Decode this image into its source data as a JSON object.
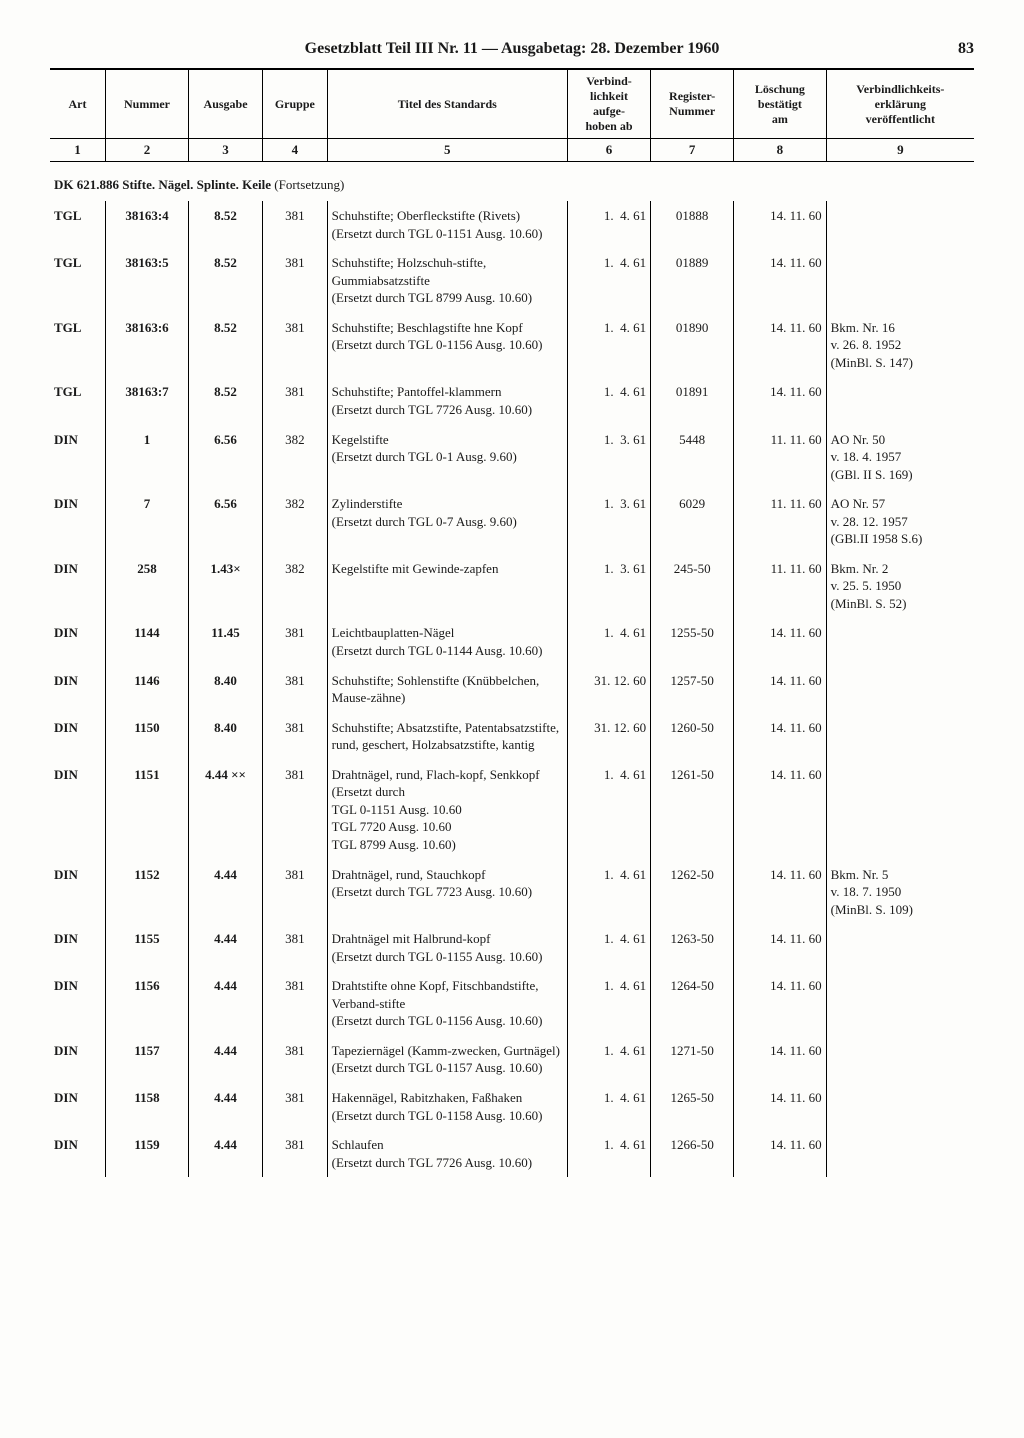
{
  "header": {
    "title": "Gesetzblatt Teil III Nr. 11 — Ausgabetag: 28. Dezember 1960",
    "page_number": "83"
  },
  "columns": {
    "headers": [
      "Art",
      "Nummer",
      "Ausgabe",
      "Gruppe",
      "Titel des Standards",
      "Verbind-\nlichkeit\naufge-\nhoben ab",
      "Register-\nNummer",
      "Löschung\nbestätigt\nam",
      "Verbindlichkeits-\nerklärung\nveröffentlicht"
    ],
    "numbers": [
      "1",
      "2",
      "3",
      "4",
      "5",
      "6",
      "7",
      "8",
      "9"
    ]
  },
  "section": {
    "label": "DK 621.886 Stifte. Nägel. Splinte. Keile",
    "suffix": "(Fortsetzung)"
  },
  "rows": [
    {
      "art": "TGL",
      "num": "38163:4",
      "ausg": "8.52",
      "grp": "381",
      "title": "Schuhstifte; Oberfleckstifte (Rivets)\n(Ersetzt durch TGL 0-1151 Ausg. 10.60)",
      "verb": "1.  4. 61",
      "reg": "01888",
      "loesch": "14. 11. 60",
      "publ": ""
    },
    {
      "art": "TGL",
      "num": "38163:5",
      "ausg": "8.52",
      "grp": "381",
      "title": "Schuhstifte; Holzschuh-stifte, Gummiabsatzstifte\n(Ersetzt durch TGL 8799 Ausg. 10.60)",
      "verb": "1.  4. 61",
      "reg": "01889",
      "loesch": "14. 11. 60",
      "publ": ""
    },
    {
      "art": "TGL",
      "num": "38163:6",
      "ausg": "8.52",
      "grp": "381",
      "title": "Schuhstifte; Beschlagstifte hne Kopf\n(Ersetzt durch TGL 0-1156 Ausg. 10.60)",
      "verb": "1.  4. 61",
      "reg": "01890",
      "loesch": "14. 11. 60",
      "publ": "Bkm. Nr. 16\nv. 26. 8. 1952\n(MinBl. S. 147)"
    },
    {
      "art": "TGL",
      "num": "38163:7",
      "ausg": "8.52",
      "grp": "381",
      "title": "Schuhstifte; Pantoffel-klammern\n(Ersetzt durch TGL 7726 Ausg. 10.60)",
      "verb": "1.  4. 61",
      "reg": "01891",
      "loesch": "14. 11. 60",
      "publ": ""
    },
    {
      "art": "DIN",
      "num": "1",
      "ausg": "6.56",
      "grp": "382",
      "title": "Kegelstifte\n(Ersetzt durch TGL 0-1 Ausg. 9.60)",
      "verb": "1.  3. 61",
      "reg": "5448",
      "loesch": "11. 11. 60",
      "publ": "AO Nr. 50\nv. 18. 4. 1957\n(GBl. II S. 169)"
    },
    {
      "art": "DIN",
      "num": "7",
      "ausg": "6.56",
      "grp": "382",
      "title": "Zylinderstifte\n(Ersetzt durch TGL 0-7 Ausg. 9.60)",
      "verb": "1.  3. 61",
      "reg": "6029",
      "loesch": "11. 11. 60",
      "publ": "AO Nr. 57\nv. 28. 12. 1957\n(GBl.II 1958 S.6)"
    },
    {
      "art": "DIN",
      "num": "258",
      "ausg": "1.43×",
      "grp": "382",
      "title": "Kegelstifte mit Gewinde-zapfen",
      "verb": "1.  3. 61",
      "reg": "245-50",
      "loesch": "11. 11. 60",
      "publ": "Bkm. Nr. 2\nv. 25. 5. 1950\n(MinBl. S. 52)"
    },
    {
      "art": "DIN",
      "num": "1144",
      "ausg": "11.45",
      "grp": "381",
      "title": "Leichtbauplatten-Nägel\n(Ersetzt durch TGL 0-1144 Ausg. 10.60)",
      "verb": "1.  4. 61",
      "reg": "1255-50",
      "loesch": "14. 11. 60",
      "publ": ""
    },
    {
      "art": "DIN",
      "num": "1146",
      "ausg": "8.40",
      "grp": "381",
      "title": "Schuhstifte; Sohlenstifte (Knübbelchen, Mause-zähne)",
      "verb": "31. 12. 60",
      "reg": "1257-50",
      "loesch": "14. 11. 60",
      "publ": ""
    },
    {
      "art": "DIN",
      "num": "1150",
      "ausg": "8.40",
      "grp": "381",
      "title": "Schuhstifte; Absatzstifte, Patentabsatzstifte, rund, geschert, Holzabsatzstifte, kantig",
      "verb": "31. 12. 60",
      "reg": "1260-50",
      "loesch": "14. 11. 60",
      "publ": ""
    },
    {
      "art": "DIN",
      "num": "1151",
      "ausg": "4.44 ××",
      "grp": "381",
      "title": "Drahtnägel, rund, Flach-kopf, Senkkopf\n(Ersetzt durch\nTGL 0-1151 Ausg. 10.60\nTGL 7720 Ausg. 10.60\nTGL 8799 Ausg. 10.60)",
      "verb": "1.  4. 61",
      "reg": "1261-50",
      "loesch": "14. 11. 60",
      "publ": ""
    },
    {
      "art": "DIN",
      "num": "1152",
      "ausg": "4.44",
      "grp": "381",
      "title": "Drahtnägel, rund, Stauchkopf\n(Ersetzt durch TGL 7723 Ausg. 10.60)",
      "verb": "1.  4. 61",
      "reg": "1262-50",
      "loesch": "14. 11. 60",
      "publ": "Bkm. Nr. 5\nv. 18. 7. 1950\n(MinBl. S. 109)"
    },
    {
      "art": "DIN",
      "num": "1155",
      "ausg": "4.44",
      "grp": "381",
      "title": "Drahtnägel mit Halbrund-kopf\n(Ersetzt durch TGL 0-1155 Ausg. 10.60)",
      "verb": "1.  4. 61",
      "reg": "1263-50",
      "loesch": "14. 11. 60",
      "publ": ""
    },
    {
      "art": "DIN",
      "num": "1156",
      "ausg": "4.44",
      "grp": "381",
      "title": "Drahtstifte ohne Kopf, Fitschbandstifte, Verband-stifte\n(Ersetzt durch TGL 0-1156 Ausg. 10.60)",
      "verb": "1.  4. 61",
      "reg": "1264-50",
      "loesch": "14. 11. 60",
      "publ": ""
    },
    {
      "art": "DIN",
      "num": "1157",
      "ausg": "4.44",
      "grp": "381",
      "title": "Tapeziernägel (Kamm-zwecken, Gurtnägel)\n(Ersetzt durch TGL 0-1157 Ausg. 10.60)",
      "verb": "1.  4. 61",
      "reg": "1271-50",
      "loesch": "14. 11. 60",
      "publ": ""
    },
    {
      "art": "DIN",
      "num": "1158",
      "ausg": "4.44",
      "grp": "381",
      "title": "Hakennägel, Rabitzhaken, Faßhaken\n(Ersetzt durch TGL 0-1158 Ausg. 10.60)",
      "verb": "1.  4. 61",
      "reg": "1265-50",
      "loesch": "14. 11. 60",
      "publ": ""
    },
    {
      "art": "DIN",
      "num": "1159",
      "ausg": "4.44",
      "grp": "381",
      "title": "Schlaufen\n(Ersetzt durch TGL 7726 Ausg. 10.60)",
      "verb": "1.  4. 61",
      "reg": "1266-50",
      "loesch": "14. 11. 60",
      "publ": ""
    }
  ]
}
